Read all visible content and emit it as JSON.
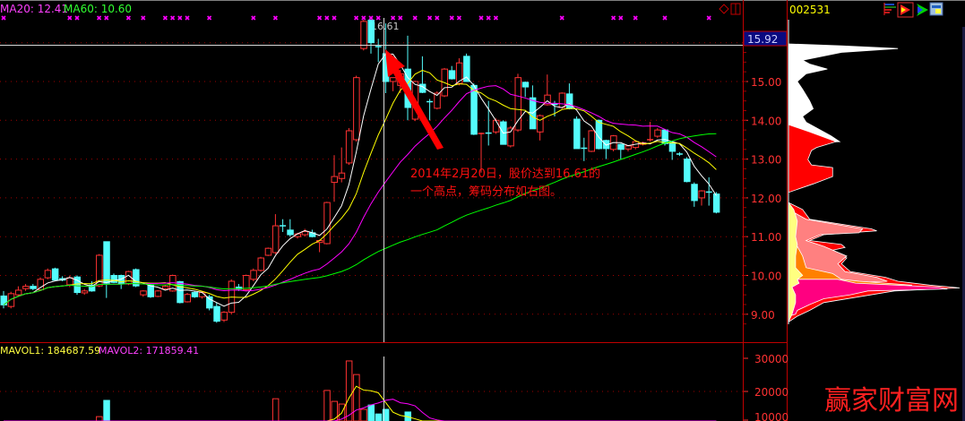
{
  "header": {
    "ma20_label": "MA20: 12.41",
    "ma60_label": "MA60: 10.60",
    "volume_ma1_label": "MAVOL1: 184687.59",
    "volume_ma2_label": "MAVOL2: 171859.41"
  },
  "right_panel": {
    "stock_code": "002531",
    "icons": [
      "bars-icon",
      "red-flag-icon",
      "green-flag-icon",
      "window-icon"
    ]
  },
  "crosshair": {
    "price_label": "15.92",
    "high_label": "16.61"
  },
  "annotation": {
    "line1": "2014年2月20日，股价达到16.61的",
    "line2": "一个高点，筹码分布如右图。"
  },
  "watermark": "赢家财富网",
  "colors": {
    "up": "#ff3232",
    "down": "#54fcfc",
    "ma5": "#ffffff",
    "ma10": "#ffff00",
    "ma20": "#ff00ff",
    "ma60": "#00ff00",
    "axis": "#ff3232",
    "price_box": "#0a0a80"
  },
  "chart_data": {
    "type": "candlestick",
    "price_axis": {
      "ticks": [
        "15.00",
        "14.00",
        "13.00",
        "12.00",
        "11.00",
        "10.00",
        "9.00"
      ],
      "range": [
        8.6,
        16.7
      ]
    },
    "volume_axis": {
      "ticks": [
        "30000",
        "20000",
        "10000"
      ]
    },
    "grid": true,
    "candles_format": [
      "open",
      "high",
      "low",
      "close"
    ],
    "candles": [
      [
        9.47,
        9.6,
        9.15,
        9.24
      ],
      [
        9.2,
        9.58,
        9.15,
        9.53
      ],
      [
        9.5,
        9.72,
        9.45,
        9.62
      ],
      [
        9.66,
        9.78,
        9.6,
        9.72
      ],
      [
        9.72,
        9.78,
        9.62,
        9.66
      ],
      [
        9.63,
        9.95,
        9.6,
        9.9
      ],
      [
        9.94,
        10.18,
        9.9,
        10.13
      ],
      [
        10.17,
        10.2,
        9.85,
        9.88
      ],
      [
        9.92,
        9.98,
        9.85,
        9.88
      ],
      [
        9.76,
        10.0,
        9.7,
        9.94
      ],
      [
        9.96,
        10.0,
        9.5,
        9.56
      ],
      [
        9.55,
        9.65,
        9.5,
        9.6
      ],
      [
        9.75,
        9.85,
        9.58,
        9.6
      ],
      [
        9.73,
        10.55,
        9.7,
        10.52
      ],
      [
        10.87,
        10.87,
        9.42,
        9.8
      ],
      [
        10.0,
        10.05,
        9.8,
        9.82
      ],
      [
        10.0,
        10.02,
        9.65,
        9.78
      ],
      [
        9.78,
        10.12,
        9.75,
        10.1
      ],
      [
        10.15,
        10.18,
        9.7,
        9.73
      ],
      [
        9.5,
        9.62,
        9.45,
        9.6
      ],
      [
        9.76,
        9.8,
        9.42,
        9.45
      ],
      [
        9.46,
        9.62,
        9.44,
        9.6
      ],
      [
        9.66,
        9.75,
        9.62,
        9.72
      ],
      [
        9.6,
        10.02,
        9.58,
        10.0
      ],
      [
        9.84,
        9.86,
        9.28,
        9.3
      ],
      [
        9.32,
        9.55,
        9.3,
        9.51
      ],
      [
        9.56,
        9.6,
        9.42,
        9.45
      ],
      [
        9.45,
        9.6,
        9.4,
        9.56
      ],
      [
        9.45,
        9.5,
        9.1,
        9.16
      ],
      [
        9.2,
        9.3,
        8.78,
        8.82
      ],
      [
        8.85,
        9.08,
        8.8,
        9.05
      ],
      [
        9.05,
        9.9,
        9.0,
        9.85
      ],
      [
        9.7,
        9.78,
        9.6,
        9.65
      ],
      [
        9.63,
        10.02,
        9.6,
        10.0
      ],
      [
        9.9,
        10.18,
        9.85,
        10.13
      ],
      [
        10.13,
        10.48,
        10.1,
        10.45
      ],
      [
        10.52,
        10.72,
        10.5,
        10.7
      ],
      [
        10.59,
        11.58,
        10.55,
        11.28
      ],
      [
        11.28,
        11.45,
        11.12,
        11.26
      ],
      [
        11.17,
        11.45,
        11.0,
        11.05
      ],
      [
        11.0,
        11.1,
        10.95,
        11.07
      ],
      [
        11.05,
        11.2,
        11.0,
        11.13
      ],
      [
        11.1,
        11.18,
        10.98,
        11.0
      ],
      [
        10.85,
        10.92,
        10.6,
        10.9
      ],
      [
        10.82,
        11.9,
        10.8,
        11.88
      ],
      [
        12.4,
        13.1,
        11.9,
        12.55
      ],
      [
        12.5,
        13.3,
        12.4,
        12.64
      ],
      [
        12.9,
        13.8,
        12.85,
        13.73
      ],
      [
        13.5,
        15.15,
        13.45,
        15.1
      ],
      [
        15.85,
        16.61,
        15.8,
        16.55
      ],
      [
        16.6,
        16.65,
        15.72,
        16.0
      ],
      [
        15.9,
        16.1,
        15.5,
        15.88
      ],
      [
        15.72,
        16.5,
        14.7,
        15.0
      ],
      [
        15.0,
        15.1,
        14.75,
        15.1
      ],
      [
        14.9,
        15.3,
        14.7,
        15.2
      ],
      [
        15.32,
        16.18,
        14.0,
        14.33
      ],
      [
        14.03,
        15.02,
        13.98,
        15.0
      ],
      [
        14.93,
        15.65,
        14.7,
        14.72
      ],
      [
        14.48,
        14.55,
        14.0,
        14.46
      ],
      [
        14.31,
        14.75,
        14.28,
        14.7
      ],
      [
        14.63,
        15.35,
        14.6,
        15.32
      ],
      [
        15.28,
        15.4,
        15.05,
        15.07
      ],
      [
        14.95,
        15.6,
        14.9,
        15.48
      ],
      [
        15.65,
        15.72,
        15.0,
        15.0
      ],
      [
        14.9,
        14.95,
        13.62,
        13.64
      ],
      [
        13.64,
        13.68,
        12.65,
        13.66
      ],
      [
        13.67,
        14.5,
        13.35,
        13.66
      ],
      [
        13.7,
        14.05,
        13.65,
        14.0
      ],
      [
        13.96,
        14.0,
        13.38,
        13.38
      ],
      [
        13.34,
        13.85,
        13.3,
        13.8
      ],
      [
        13.75,
        15.2,
        13.7,
        15.1
      ],
      [
        14.98,
        15.0,
        14.6,
        14.86
      ],
      [
        14.58,
        14.9,
        13.78,
        13.78
      ],
      [
        13.7,
        14.15,
        13.48,
        14.12
      ],
      [
        14.4,
        15.18,
        14.38,
        14.65
      ],
      [
        14.41,
        14.5,
        14.1,
        14.39
      ],
      [
        14.33,
        14.72,
        14.3,
        14.7
      ],
      [
        14.68,
        14.95,
        14.28,
        14.3
      ],
      [
        14.03,
        14.1,
        13.27,
        13.27
      ],
      [
        13.28,
        13.55,
        12.95,
        13.26
      ],
      [
        13.2,
        13.75,
        13.18,
        13.73
      ],
      [
        14.0,
        14.02,
        13.25,
        13.27
      ],
      [
        13.48,
        13.5,
        13.0,
        13.27
      ],
      [
        13.25,
        13.62,
        13.2,
        13.6
      ],
      [
        13.38,
        13.4,
        12.98,
        13.25
      ],
      [
        13.26,
        13.36,
        13.2,
        13.34
      ],
      [
        13.3,
        13.48,
        13.25,
        13.45
      ],
      [
        13.38,
        13.45,
        13.35,
        13.42
      ],
      [
        13.5,
        13.96,
        13.45,
        13.5
      ],
      [
        13.59,
        13.8,
        13.55,
        13.75
      ],
      [
        13.75,
        13.78,
        13.35,
        13.4
      ],
      [
        13.43,
        13.45,
        12.98,
        13.2
      ],
      [
        13.13,
        13.18,
        13.08,
        13.12
      ],
      [
        13.0,
        13.05,
        12.4,
        12.42
      ],
      [
        12.35,
        12.4,
        11.77,
        11.93
      ],
      [
        12.0,
        12.2,
        11.8,
        12.18
      ],
      [
        12.15,
        12.53,
        11.8,
        12.14
      ],
      [
        12.1,
        12.15,
        11.6,
        11.63
      ]
    ],
    "volume": [
      5200,
      6100,
      5800,
      4900,
      5300,
      6400,
      7000,
      6800,
      5100,
      5600,
      6900,
      4800,
      5200,
      12400,
      17300,
      6200,
      5400,
      6600,
      7200,
      4900,
      5600,
      4700,
      5100,
      6800,
      7400,
      5300,
      4600,
      5000,
      6100,
      7800,
      6500,
      8200,
      5400,
      7900,
      8400,
      8800,
      9600,
      17800,
      9200,
      8100,
      6900,
      7300,
      6600,
      7100,
      20300,
      17000,
      16200,
      29200,
      25100,
      14600,
      15900,
      13200,
      14600,
      10400,
      9800,
      13800,
      10100,
      9400,
      8200,
      8600,
      9100,
      8000,
      8800,
      9300,
      10200,
      8700,
      7600,
      7400,
      8100,
      7200,
      9500,
      8300,
      8900,
      7800,
      8600,
      6900,
      7300,
      7700,
      8200,
      6800,
      7000,
      7500,
      6300,
      6700,
      6100,
      5400,
      5900,
      5200,
      6800,
      6400,
      7100,
      6900,
      5600,
      8200,
      8800,
      7400,
      6900,
      8600
    ],
    "volume_up_flags": "derived from candles",
    "signal_marks": [
      0,
      9,
      10,
      13,
      14,
      17,
      19,
      22,
      23,
      24,
      25,
      28,
      34,
      37,
      43,
      44,
      45,
      48,
      49,
      50,
      51,
      53,
      54,
      56,
      58,
      59,
      61,
      62,
      65,
      66,
      67,
      76,
      83,
      84,
      86,
      90,
      96
    ],
    "moving_averages": [
      "MA5",
      "MA10",
      "MA20",
      "MA60"
    ],
    "volume_moving_averages": [
      "MAVOL1",
      "MAVOL2"
    ],
    "chip_distribution": {
      "layers": [
        {
          "color": "#ffffff",
          "points": [
            [
              15.97,
              0
            ],
            [
              15.92,
              0.3
            ],
            [
              15.85,
              0.62
            ],
            [
              15.75,
              0.3
            ],
            [
              15.55,
              0.08
            ],
            [
              15.45,
              0.12
            ],
            [
              15.32,
              0.22
            ],
            [
              15.2,
              0.1
            ],
            [
              15.0,
              0.05
            ],
            [
              14.8,
              0.08
            ],
            [
              14.5,
              0.12
            ],
            [
              14.3,
              0.14
            ],
            [
              14.1,
              0.08
            ],
            [
              13.95,
              0.1
            ],
            [
              13.6,
              0.24
            ],
            [
              13.45,
              0.29
            ],
            [
              13.4,
              0
            ]
          ]
        },
        {
          "color": "#ff0000",
          "points": [
            [
              13.89,
              0
            ],
            [
              13.7,
              0.12
            ],
            [
              13.45,
              0.27
            ],
            [
              13.3,
              0.16
            ],
            [
              13.22,
              0.13
            ],
            [
              12.99,
              0.11
            ],
            [
              12.85,
              0.13
            ],
            [
              12.78,
              0.25
            ],
            [
              12.55,
              0.25
            ],
            [
              12.36,
              0.14
            ],
            [
              12.14,
              0
            ]
          ]
        },
        {
          "color": "#ff0000",
          "points": [
            [
              11.88,
              0
            ],
            [
              11.7,
              0.08
            ],
            [
              11.45,
              0.12
            ],
            [
              11.2,
              0.47
            ],
            [
              11.15,
              0.5
            ],
            [
              11.05,
              0.2
            ],
            [
              10.9,
              0.12
            ],
            [
              10.8,
              0.3
            ],
            [
              10.72,
              0.32
            ],
            [
              10.6,
              0.2
            ],
            [
              10.45,
              0.33
            ],
            [
              10.3,
              0.3
            ],
            [
              10.1,
              0.35
            ],
            [
              9.95,
              0.55
            ],
            [
              9.85,
              0.62
            ],
            [
              9.75,
              0.8
            ],
            [
              9.68,
              0.97
            ],
            [
              9.6,
              0.6
            ],
            [
              9.45,
              0.4
            ],
            [
              9.3,
              0.2
            ],
            [
              9.1,
              0.12
            ],
            [
              8.95,
              0.05
            ],
            [
              8.8,
              0
            ]
          ]
        },
        {
          "color": "#ff8080",
          "points": [
            [
              11.7,
              0
            ],
            [
              11.45,
              0.1
            ],
            [
              11.2,
              0.42
            ],
            [
              11.1,
              0.4
            ],
            [
              11.05,
              0.18
            ],
            [
              10.9,
              0.1
            ],
            [
              10.75,
              0.2
            ],
            [
              10.5,
              0.33
            ],
            [
              10.3,
              0.28
            ],
            [
              10.1,
              0.32
            ],
            [
              9.95,
              0.5
            ],
            [
              9.85,
              0.56
            ],
            [
              9.8,
              0.3
            ],
            [
              9.7,
              0
            ]
          ]
        },
        {
          "color": "#ff8000",
          "points": [
            [
              10.82,
              0
            ],
            [
              10.75,
              0.05
            ],
            [
              10.5,
              0.08
            ],
            [
              10.2,
              0.1
            ],
            [
              10.05,
              0.25
            ],
            [
              9.9,
              0.3
            ],
            [
              9.85,
              0.4
            ],
            [
              9.75,
              0.7
            ],
            [
              9.7,
              0.6
            ],
            [
              9.65,
              0.2
            ],
            [
              9.55,
              0.15
            ],
            [
              9.4,
              0.08
            ],
            [
              9.3,
              0.06
            ],
            [
              9.25,
              0
            ]
          ]
        },
        {
          "color": "#ff0080",
          "points": [
            [
              9.9,
              0.28
            ],
            [
              9.8,
              0.38
            ],
            [
              9.7,
              0.85
            ],
            [
              9.65,
              0.9
            ],
            [
              9.6,
              0.45
            ],
            [
              9.5,
              0.35
            ],
            [
              9.4,
              0.2
            ],
            [
              9.25,
              0.12
            ],
            [
              9.1,
              0.05
            ],
            [
              9.0,
              0.04
            ],
            [
              8.95,
              0
            ],
            [
              9.9,
              0
            ]
          ]
        },
        {
          "color": "#ffff80",
          "points": [
            [
              11.88,
              0
            ],
            [
              11.7,
              0.03
            ],
            [
              11.4,
              0.05
            ],
            [
              11.0,
              0.04
            ],
            [
              10.8,
              0.05
            ],
            [
              10.5,
              0.04
            ],
            [
              10.2,
              0.04
            ],
            [
              10.0,
              0.08
            ],
            [
              9.9,
              0.05
            ],
            [
              9.8,
              0.06
            ],
            [
              9.7,
              0.02
            ],
            [
              9.5,
              0.04
            ],
            [
              9.3,
              0.04
            ],
            [
              9.0,
              0.02
            ],
            [
              8.8,
              0
            ]
          ]
        }
      ]
    }
  }
}
